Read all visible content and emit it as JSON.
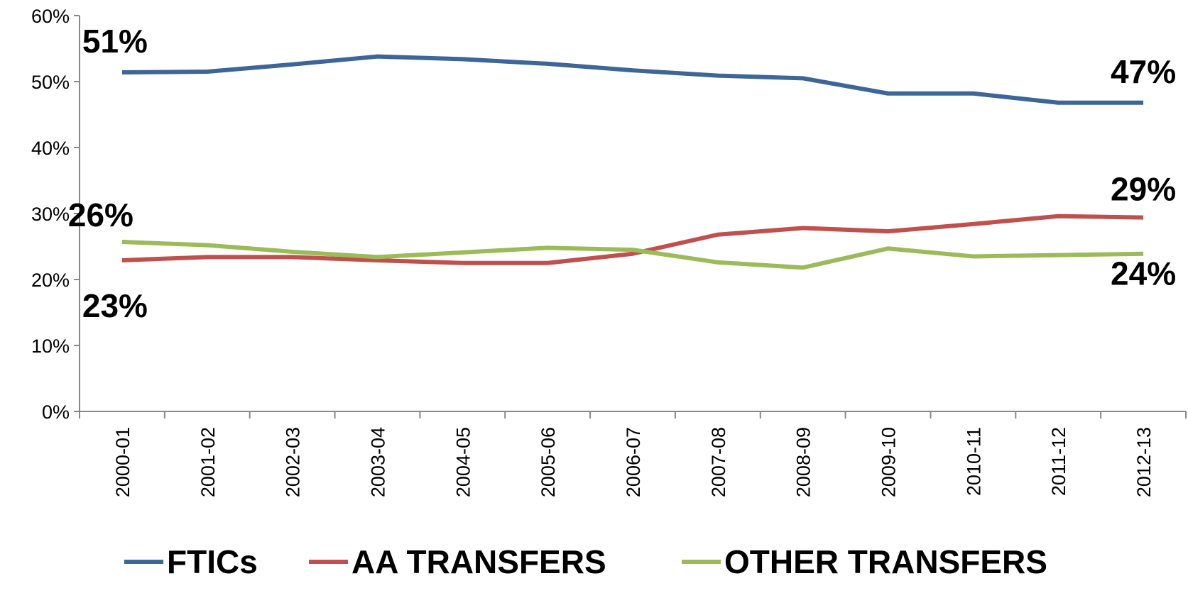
{
  "chart_data": {
    "type": "line",
    "categories": [
      "2000-01",
      "2001-02",
      "2002-03",
      "2003-04",
      "2004-05",
      "2005-06",
      "2006-07",
      "2007-08",
      "2008-09",
      "2009-10",
      "2010-11",
      "2011-12",
      "2012-13"
    ],
    "series": [
      {
        "name": "FTICs",
        "color": "#3c6598",
        "values": [
          51.4,
          51.5,
          52.6,
          53.8,
          53.4,
          52.7,
          51.7,
          50.9,
          50.5,
          48.2,
          48.2,
          46.8,
          46.8
        ],
        "value_labels": [
          "51%",
          null,
          null,
          null,
          null,
          null,
          null,
          null,
          null,
          null,
          null,
          null,
          "47%"
        ]
      },
      {
        "name": "AA TRANSFERS",
        "color": "#c0504d",
        "values": [
          22.9,
          23.4,
          23.4,
          22.9,
          22.5,
          22.5,
          23.9,
          26.8,
          27.8,
          27.3,
          28.4,
          29.6,
          29.4
        ],
        "value_labels": [
          "23%",
          null,
          null,
          null,
          null,
          null,
          null,
          null,
          null,
          null,
          null,
          null,
          "29%"
        ]
      },
      {
        "name": "OTHER TRANSFERS",
        "color": "#9bbb59",
        "values": [
          25.7,
          25.2,
          24.2,
          23.4,
          24.1,
          24.8,
          24.5,
          22.6,
          21.8,
          24.7,
          23.5,
          23.7,
          23.9
        ],
        "value_labels": [
          "26%",
          null,
          null,
          null,
          null,
          null,
          null,
          null,
          null,
          null,
          null,
          null,
          "24%"
        ]
      }
    ],
    "ylim": [
      0,
      60
    ],
    "yticks": [
      {
        "value": 0,
        "label": "0%"
      },
      {
        "value": 10,
        "label": "10%"
      },
      {
        "value": 20,
        "label": "20%"
      },
      {
        "value": 30,
        "label": "30%"
      },
      {
        "value": 40,
        "label": "40%"
      },
      {
        "value": 50,
        "label": "50%"
      },
      {
        "value": 60,
        "label": "60%"
      }
    ],
    "legend": "bottom"
  }
}
